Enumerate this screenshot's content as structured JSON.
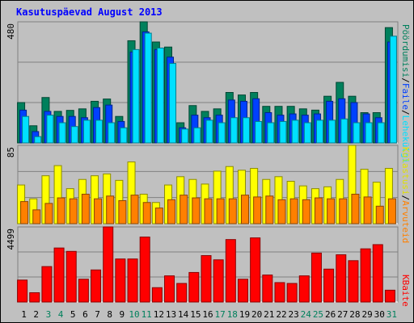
{
  "chart_data": [
    {
      "type": "bar",
      "title": "Kasutuspäevad August 2013",
      "categories": [
        "1",
        "2",
        "3",
        "4",
        "5",
        "6",
        "7",
        "8",
        "9",
        "10",
        "11",
        "12",
        "13",
        "14",
        "15",
        "16",
        "17",
        "18",
        "19",
        "20",
        "21",
        "22",
        "23",
        "24",
        "25",
        "26",
        "27",
        "28",
        "29",
        "30",
        "31"
      ],
      "highlight_categories": [
        2,
        3,
        9,
        10,
        16,
        17,
        23,
        24,
        30
      ],
      "category_color": "#000000",
      "highlight_color": "#00805c",
      "legend_separator": "/",
      "ylim": [
        0,
        480
      ],
      "series": [
        {
          "name": "Pöördumisi",
          "color": "#00805c",
          "values": [
            160,
            68,
            180,
            125,
            129,
            135,
            165,
            174,
            105,
            405,
            480,
            400,
            380,
            80,
            148,
            125,
            135,
            200,
            190,
            200,
            145,
            145,
            145,
            135,
            130,
            185,
            240,
            185,
            120,
            120,
            457
          ]
        },
        {
          "name": "Faile",
          "color": "#0040ff",
          "values": [
            130,
            45,
            125,
            105,
            105,
            100,
            140,
            150,
            85,
            360,
            440,
            370,
            340,
            60,
            110,
            100,
            110,
            170,
            165,
            175,
            120,
            110,
            115,
            110,
            115,
            165,
            175,
            160,
            115,
            100,
            400
          ]
        },
        {
          "name": "Lehekülgi",
          "color": "#00e0ff",
          "values": [
            105,
            25,
            110,
            80,
            65,
            90,
            90,
            80,
            60,
            370,
            435,
            376,
            315,
            55,
            60,
            90,
            80,
            100,
            100,
            85,
            80,
            85,
            90,
            80,
            90,
            90,
            95,
            80,
            80,
            80,
            423
          ]
        }
      ]
    },
    {
      "type": "bar",
      "ylim": [
        0,
        85
      ],
      "series": [
        {
          "name": "Külastusi",
          "color": "#ffff00",
          "values": [
            42,
            27,
            52,
            63,
            38,
            48,
            52,
            54,
            47,
            67,
            32,
            23,
            42,
            51,
            48,
            43,
            57,
            62,
            58,
            60,
            48,
            51,
            46,
            41,
            38,
            40,
            48,
            85,
            59,
            45,
            60
          ]
        },
        {
          "name": "Arvuteid",
          "color": "#ff8000",
          "values": [
            24,
            15,
            22,
            28,
            27,
            32,
            27,
            30,
            25,
            31,
            23,
            17,
            26,
            31,
            28,
            27,
            27,
            27,
            31,
            29,
            30,
            26,
            27,
            26,
            28,
            27,
            27,
            32,
            29,
            19,
            27
          ]
        }
      ]
    },
    {
      "type": "bar",
      "ylim": [
        0,
        4499
      ],
      "series": [
        {
          "name": "KBaite",
          "color": "#ff0000",
          "values": [
            1314,
            556,
            2123,
            3235,
            3033,
            1365,
            1921,
            4499,
            2578,
            2578,
            3892,
            859,
            1567,
            1112,
            1769,
            2780,
            2527,
            3741,
            1365,
            3842,
            1618,
            1163,
            1112,
            1567,
            2932,
            1971,
            2831,
            2477,
            3185,
            3437,
            708
          ]
        }
      ]
    }
  ]
}
